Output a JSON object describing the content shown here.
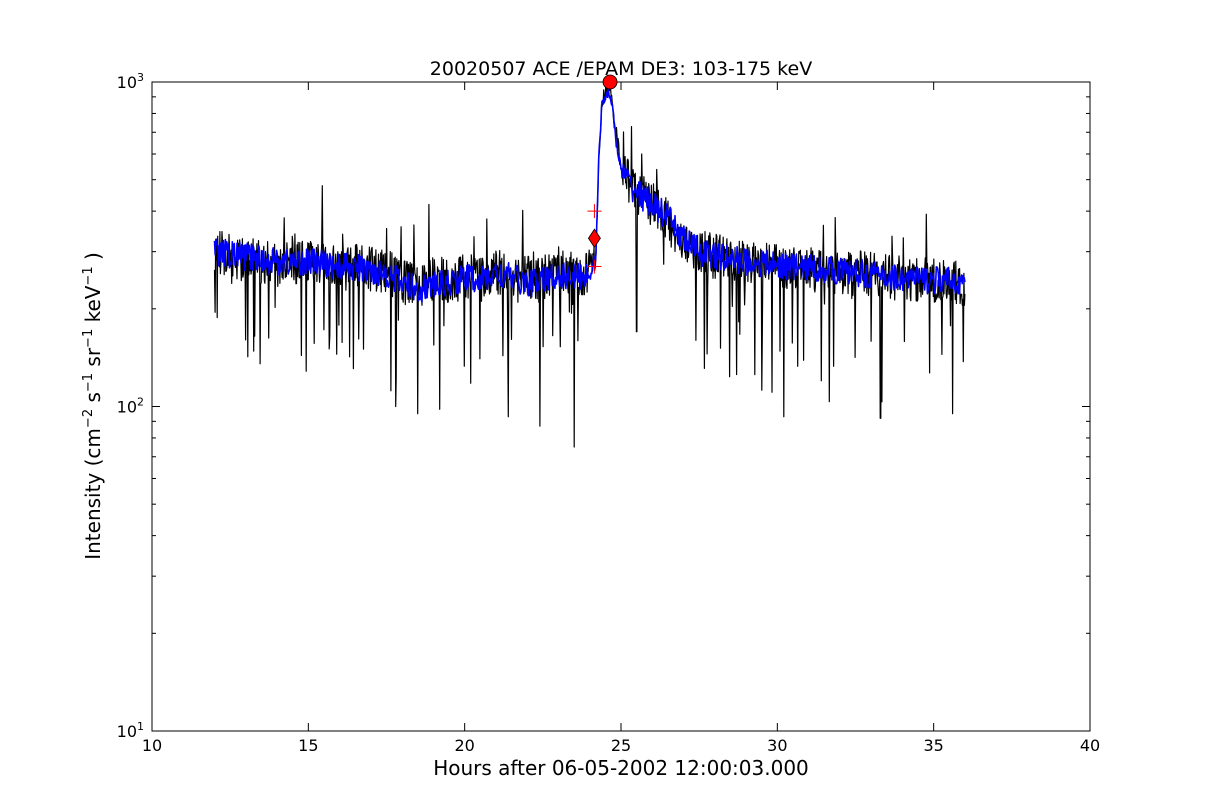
{
  "chart_data": {
    "type": "line",
    "title": "20020507 ACE /EPAM DE3: 103-175 keV",
    "xlabel": "Hours after 06-05-2002 12:00:03.000",
    "ylabel": {
      "prefix": "Intensity (cm",
      "exp1": "−2",
      "s": " s",
      "exp2": "−1",
      "sr": " sr",
      "exp3": "−1",
      "kev": " keV",
      "exp4": "−1",
      "suffix": " )"
    },
    "xlim": [
      10,
      40
    ],
    "ylim": [
      10,
      1000
    ],
    "yscale": "log",
    "grid": false,
    "x_ticks": [
      10,
      15,
      20,
      25,
      30,
      35,
      40
    ],
    "y_ticks": [
      {
        "value": 10,
        "base": "10",
        "exp": "1"
      },
      {
        "value": 100,
        "base": "10",
        "exp": "2"
      },
      {
        "value": 1000,
        "base": "10",
        "exp": "3"
      }
    ],
    "colors": {
      "raw": "#000000",
      "smoothed": "#0000ff",
      "marker": "#ff0000"
    },
    "series": [
      {
        "style": "raw",
        "x": [
          12.0,
          12.5,
          13.0,
          13.5,
          14.0,
          14.5,
          15.0,
          15.5,
          16.0,
          16.5,
          17.0,
          17.5,
          17.8,
          18.0,
          18.3,
          18.6,
          19.0,
          19.3,
          19.6,
          20.0,
          20.3,
          20.6,
          21.0,
          21.3,
          21.6,
          22.0,
          22.4,
          22.8,
          23.0,
          23.4,
          23.7,
          24.0,
          24.2,
          24.3,
          24.4,
          24.5,
          24.6,
          24.7,
          24.8,
          24.9,
          25.0,
          25.2,
          25.5,
          25.8,
          26.0,
          26.3,
          26.6,
          27.0,
          27.5,
          28.0,
          28.5,
          29.0,
          29.5,
          30.0,
          30.5,
          31.0,
          31.5,
          32.0,
          32.5,
          33.0,
          33.5,
          34.0,
          34.5,
          35.0,
          35.5,
          36.0
        ],
        "y": [
          300,
          290,
          285,
          280,
          270,
          275,
          280,
          275,
          265,
          270,
          265,
          260,
          250,
          240,
          245,
          235,
          250,
          245,
          240,
          255,
          250,
          245,
          260,
          255,
          240,
          250,
          245,
          260,
          265,
          255,
          250,
          260,
          290,
          600,
          880,
          930,
          960,
          880,
          760,
          640,
          560,
          500,
          460,
          440,
          420,
          390,
          360,
          320,
          300,
          290,
          285,
          280,
          275,
          270,
          268,
          265,
          262,
          260,
          258,
          255,
          250,
          248,
          246,
          245,
          244,
          240
        ],
        "min_dips": [
          {
            "x": 17.8,
            "y": 100
          },
          {
            "x": 18.5,
            "y": 95
          },
          {
            "x": 19.2,
            "y": 98
          },
          {
            "x": 20.2,
            "y": 118
          },
          {
            "x": 21.4,
            "y": 93
          },
          {
            "x": 22.4,
            "y": 87
          },
          {
            "x": 23.5,
            "y": 75
          },
          {
            "x": 25.5,
            "y": 170
          },
          {
            "x": 27.4,
            "y": 160
          },
          {
            "x": 30.2,
            "y": 93
          },
          {
            "x": 31.4,
            "y": 120
          },
          {
            "x": 33.3,
            "y": 92
          },
          {
            "x": 35.6,
            "y": 95
          }
        ]
      },
      {
        "style": "smoothed",
        "x": [
          12.0,
          12.5,
          13.0,
          13.5,
          14.0,
          14.5,
          15.0,
          15.5,
          16.0,
          16.5,
          17.0,
          17.5,
          18.0,
          18.5,
          19.0,
          19.5,
          20.0,
          20.5,
          21.0,
          21.5,
          22.0,
          22.5,
          23.0,
          23.5,
          24.0,
          24.2,
          24.3,
          24.4,
          24.5,
          24.6,
          24.7,
          24.8,
          24.9,
          25.0,
          25.3,
          25.6,
          26.0,
          26.5,
          27.0,
          27.5,
          28.0,
          29.0,
          30.0,
          31.0,
          32.0,
          33.0,
          34.0,
          35.0,
          36.0
        ],
        "y": [
          300,
          295,
          290,
          285,
          280,
          278,
          280,
          275,
          270,
          268,
          262,
          258,
          240,
          230,
          235,
          240,
          250,
          245,
          255,
          250,
          240,
          245,
          255,
          250,
          255,
          300,
          620,
          860,
          900,
          950,
          860,
          720,
          600,
          540,
          480,
          450,
          420,
          380,
          330,
          300,
          290,
          280,
          272,
          268,
          262,
          255,
          248,
          245,
          242
        ]
      }
    ],
    "markers": [
      {
        "shape": "circle",
        "x": 24.65,
        "y": 1000
      },
      {
        "shape": "diamond",
        "x": 24.15,
        "y": 330
      },
      {
        "shape": "plus",
        "x": 24.15,
        "y": 400
      },
      {
        "shape": "plus",
        "x": 24.15,
        "y": 270
      }
    ]
  }
}
